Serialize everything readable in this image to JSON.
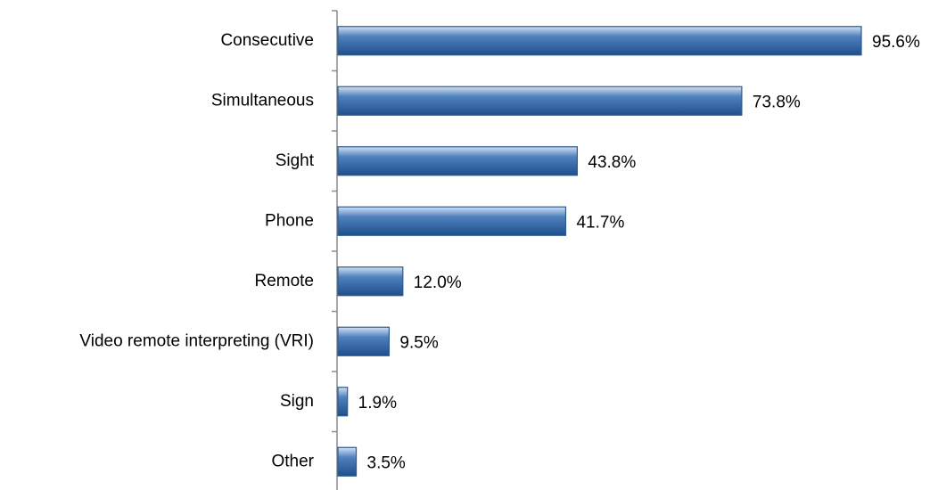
{
  "chart_data": {
    "type": "bar",
    "orientation": "horizontal",
    "categories": [
      "Consecutive",
      "Simultaneous",
      "Sight",
      "Phone",
      "Remote",
      "Video remote interpreting (VRI)",
      "Sign",
      "Other"
    ],
    "values": [
      95.6,
      73.8,
      43.8,
      41.7,
      12.0,
      9.5,
      1.9,
      3.5
    ],
    "value_labels": [
      "95.6%",
      "73.8%",
      "43.8%",
      "41.7%",
      "12.0%",
      "9.5%",
      "1.9%",
      "3.5%"
    ],
    "color": "#4f81bd"
  }
}
